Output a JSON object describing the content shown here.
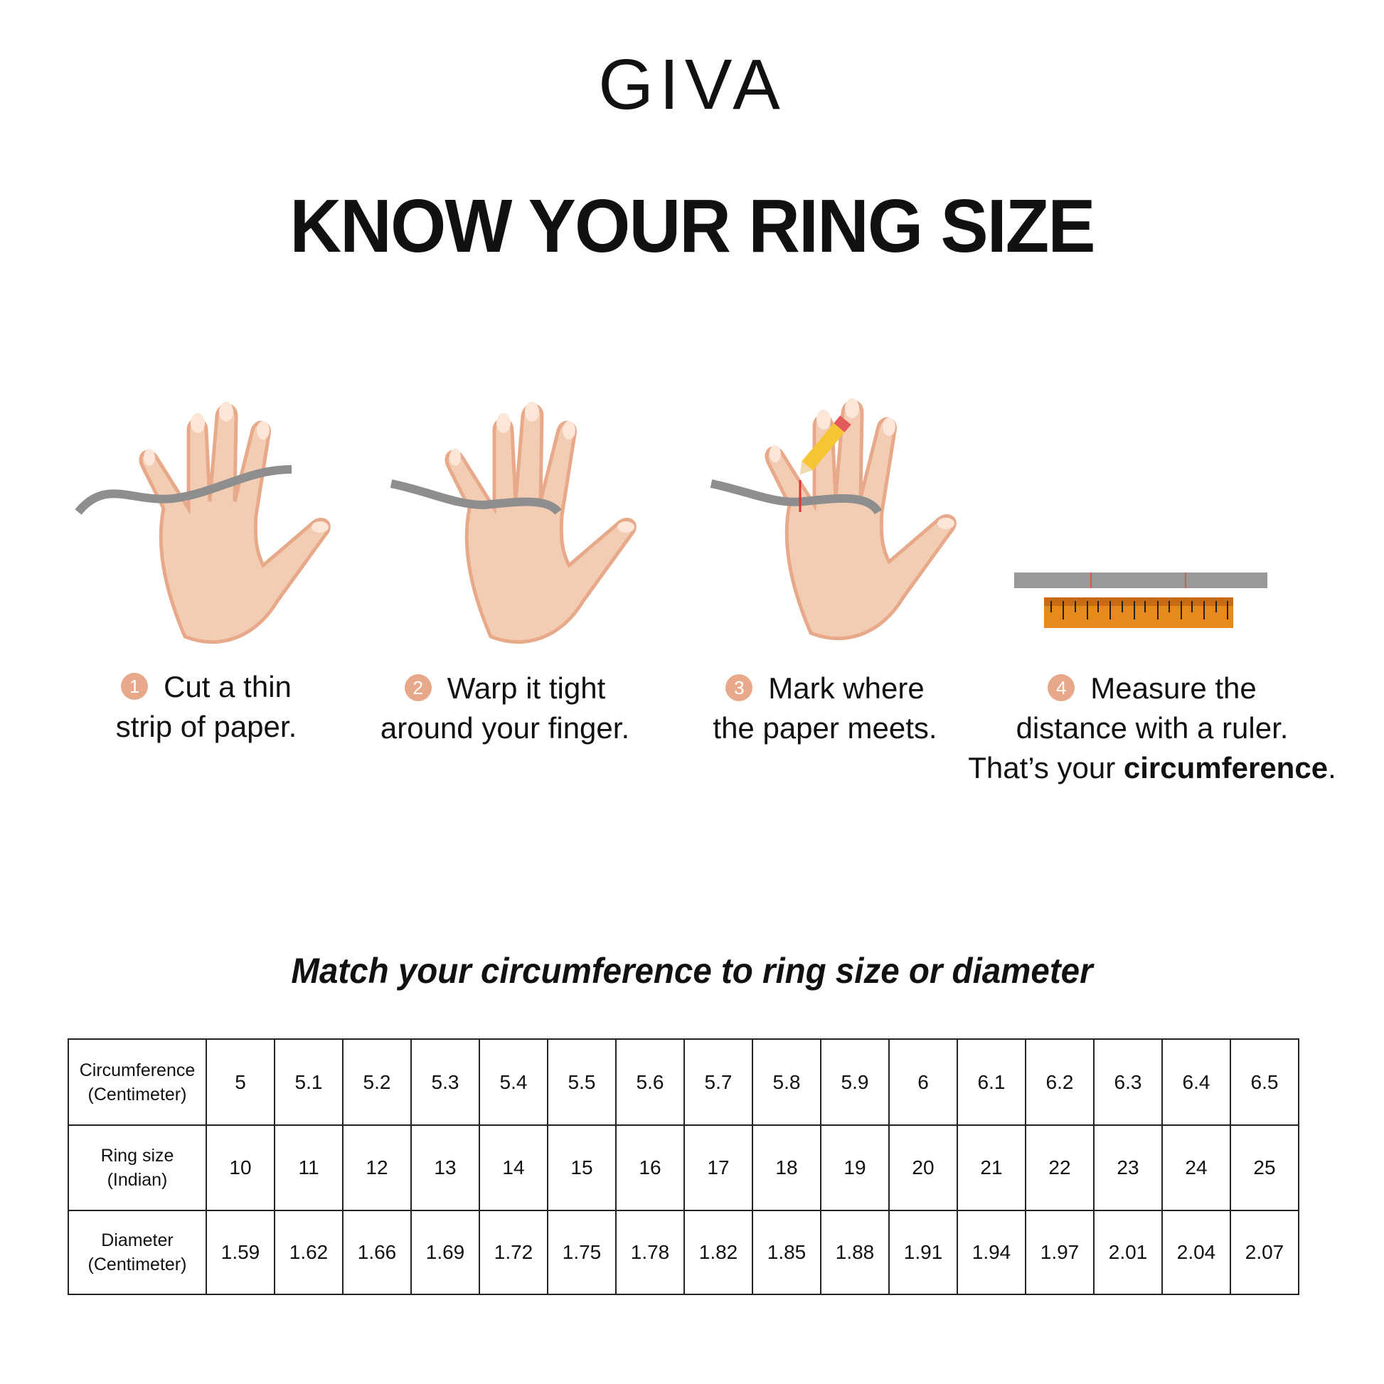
{
  "brand": {
    "logo": "GIVA"
  },
  "title": "KNOW YOUR RING SIZE",
  "steps": [
    {
      "num": "1",
      "line1": "Cut a thin",
      "line2": "strip of paper."
    },
    {
      "num": "2",
      "line1": "Warp it tight",
      "line2": "around your finger."
    },
    {
      "num": "3",
      "line1": "Mark where",
      "line2": "the paper meets."
    },
    {
      "num": "4",
      "line1": "Measure the",
      "line2": "distance with a ruler.",
      "line3_prefix": "That’s your ",
      "line3_bold": "circumference",
      "line3_suffix": "."
    }
  ],
  "colors": {
    "skin": "#f3cdb3",
    "skin_shadow": "#e8a98a",
    "paper": "#8e8e8e",
    "ruler": "#e8891c",
    "badge": "#e8a98a"
  },
  "subtitle": "Match your circumference to ring size or diameter",
  "table": {
    "rows": [
      {
        "label1": "Circumference",
        "label2": "(Centimeter)",
        "values": [
          "5",
          "5.1",
          "5.2",
          "5.3",
          "5.4",
          "5.5",
          "5.6",
          "5.7",
          "5.8",
          "5.9",
          "6",
          "6.1",
          "6.2",
          "6.3",
          "6.4",
          "6.5"
        ]
      },
      {
        "label1": "Ring size",
        "label2": "(Indian)",
        "values": [
          "10",
          "11",
          "12",
          "13",
          "14",
          "15",
          "16",
          "17",
          "18",
          "19",
          "20",
          "21",
          "22",
          "23",
          "24",
          "25"
        ]
      },
      {
        "label1": "Diameter",
        "label2": "(Centimeter)",
        "values": [
          "1.59",
          "1.62",
          "1.66",
          "1.69",
          "1.72",
          "1.75",
          "1.78",
          "1.82",
          "1.85",
          "1.88",
          "1.91",
          "1.94",
          "1.97",
          "2.01",
          "2.04",
          "2.07"
        ]
      }
    ]
  }
}
